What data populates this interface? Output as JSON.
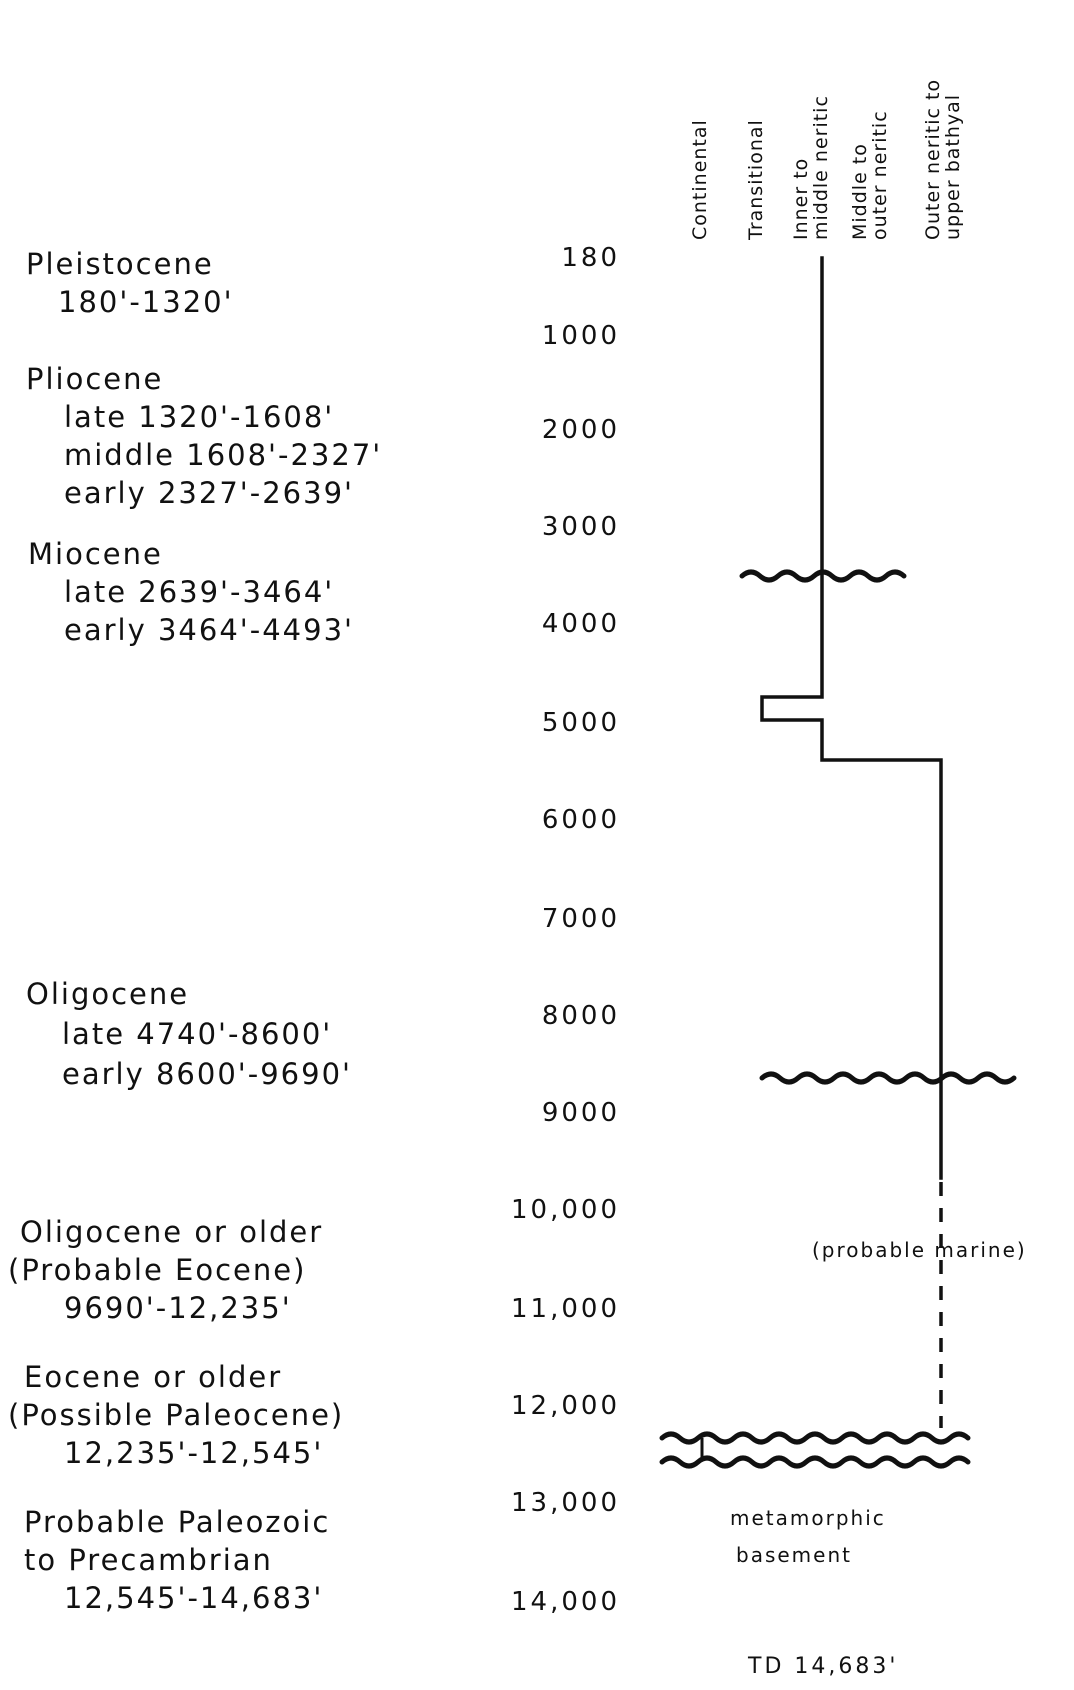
{
  "environments": [
    {
      "label": "Continental"
    },
    {
      "label": "Transitional"
    },
    {
      "label": "Inner to",
      "label2": "middle neritic"
    },
    {
      "label": "Middle to",
      "label2": "outer neritic"
    },
    {
      "label": "Outer neritic to",
      "label2": "upper bathyal"
    }
  ],
  "depth_labels": [
    "180",
    "1000",
    "2000",
    "3000",
    "4000",
    "5000",
    "6000",
    "7000",
    "8000",
    "9000",
    "10,000",
    "11,000",
    "12,000",
    "13,000",
    "14,000"
  ],
  "units": [
    {
      "title": "Pleistocene",
      "lines": [
        "180'-1320'"
      ]
    },
    {
      "title": "Pliocene",
      "lines": [
        "late 1320'-1608'",
        "middle 1608'-2327'",
        "early 2327'-2639'"
      ]
    },
    {
      "title": "Miocene",
      "lines": [
        "late 2639'-3464'",
        "early 3464'-4493'"
      ]
    },
    {
      "title": "Oligocene",
      "lines": [
        "late 4740'-8600'",
        "early 8600'-9690'"
      ]
    },
    {
      "title": "Oligocene or older",
      "lines": [
        "(Probable Eocene)",
        "9690'-12,235'"
      ]
    },
    {
      "title": "Eocene or older",
      "lines": [
        "(Possible Paleocene)",
        "12,235'-12,545'"
      ]
    },
    {
      "title": "Probable Paleozoic",
      "lines": [
        "to Precambrian",
        "12,545'-14,683'"
      ]
    }
  ],
  "annotations": {
    "probable_marine": "(probable marine)",
    "basement_1": "metamorphic",
    "basement_2": "basement",
    "td": "TD 14,683'"
  },
  "chart_data": {
    "type": "step-profile",
    "y_axis": "depth (feet)",
    "y_range": [
      180,
      14683
    ],
    "environment_order": [
      "Continental",
      "Transitional",
      "Inner to middle neritic",
      "Middle to outer neritic",
      "Outer neritic to upper bathyal"
    ],
    "segments": [
      {
        "from": 180,
        "to": 4740,
        "environment": "Inner to middle neritic",
        "style": "solid"
      },
      {
        "from": 4740,
        "to": 4950,
        "environment": "Transitional",
        "style": "solid"
      },
      {
        "from": 4950,
        "to": 5400,
        "environment": "Inner to middle neritic",
        "style": "solid"
      },
      {
        "from": 5400,
        "to": 9690,
        "environment": "Outer neritic to upper bathyal",
        "style": "solid"
      },
      {
        "from": 9690,
        "to": 12235,
        "environment": "Outer neritic to upper bathyal",
        "style": "dashed"
      }
    ],
    "unconformities": [
      3464,
      8600,
      12235,
      12545
    ]
  }
}
